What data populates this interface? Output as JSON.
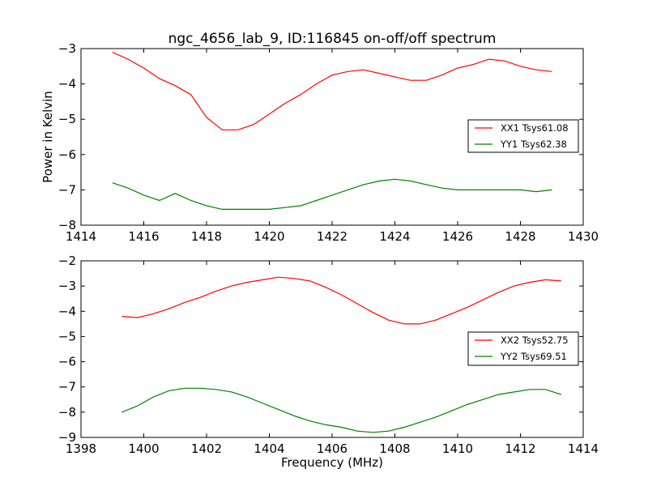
{
  "title": "ngc_4656_lab_9, ID:116845 on-off/off spectrum",
  "chart_data": [
    {
      "type": "line",
      "xlabel": "",
      "ylabel": "Power in Kelvin",
      "xlim": [
        1414,
        1430
      ],
      "ylim": [
        -8,
        -3
      ],
      "xticks": [
        1414,
        1416,
        1418,
        1420,
        1422,
        1424,
        1426,
        1428,
        1430
      ],
      "yticks": [
        -8,
        -7,
        -6,
        -5,
        -4,
        -3
      ],
      "grid": false,
      "legend_position": "center-right",
      "series": [
        {
          "name": "XX1 Tsys61.08",
          "color": "#ff0000",
          "x": [
            1415.0,
            1415.5,
            1416.0,
            1416.5,
            1417.0,
            1417.5,
            1418.0,
            1418.5,
            1419.0,
            1419.5,
            1420.0,
            1420.5,
            1421.0,
            1421.5,
            1422.0,
            1422.5,
            1423.0,
            1423.5,
            1424.0,
            1424.5,
            1425.0,
            1425.5,
            1426.0,
            1426.5,
            1427.0,
            1427.5,
            1428.0,
            1428.5,
            1429.0
          ],
          "y": [
            -3.1,
            -3.3,
            -3.55,
            -3.85,
            -4.05,
            -4.3,
            -4.95,
            -5.3,
            -5.3,
            -5.15,
            -4.85,
            -4.55,
            -4.3,
            -4.0,
            -3.75,
            -3.65,
            -3.6,
            -3.7,
            -3.8,
            -3.9,
            -3.9,
            -3.75,
            -3.55,
            -3.45,
            -3.3,
            -3.35,
            -3.5,
            -3.6,
            -3.65
          ]
        },
        {
          "name": "YY1 Tsys62.38",
          "color": "#008000",
          "x": [
            1415.0,
            1415.5,
            1416.0,
            1416.5,
            1417.0,
            1417.5,
            1418.0,
            1418.5,
            1419.0,
            1419.5,
            1420.0,
            1420.5,
            1421.0,
            1421.5,
            1422.0,
            1422.5,
            1423.0,
            1423.5,
            1424.0,
            1424.5,
            1425.0,
            1425.5,
            1426.0,
            1426.5,
            1427.0,
            1427.5,
            1428.0,
            1428.5,
            1429.0
          ],
          "y": [
            -6.8,
            -6.95,
            -7.15,
            -7.3,
            -7.1,
            -7.3,
            -7.45,
            -7.55,
            -7.55,
            -7.55,
            -7.55,
            -7.5,
            -7.45,
            -7.3,
            -7.15,
            -7.0,
            -6.85,
            -6.75,
            -6.7,
            -6.75,
            -6.85,
            -6.95,
            -7.0,
            -7.0,
            -7.0,
            -7.0,
            -7.0,
            -7.05,
            -7.0
          ]
        }
      ]
    },
    {
      "type": "line",
      "xlabel": "Frequency (MHz)",
      "ylabel": "",
      "xlim": [
        1398,
        1414
      ],
      "ylim": [
        -9,
        -2
      ],
      "xticks": [
        1398,
        1400,
        1402,
        1404,
        1406,
        1408,
        1410,
        1412,
        1414
      ],
      "yticks": [
        -9,
        -8,
        -7,
        -6,
        -5,
        -4,
        -3,
        -2
      ],
      "grid": false,
      "legend_position": "center-right",
      "series": [
        {
          "name": "XX2 Tsys52.75",
          "color": "#ff0000",
          "x": [
            1399.3,
            1399.8,
            1400.3,
            1400.8,
            1401.3,
            1401.8,
            1402.3,
            1402.8,
            1403.3,
            1403.8,
            1404.3,
            1404.8,
            1405.3,
            1405.8,
            1406.3,
            1406.8,
            1407.3,
            1407.8,
            1408.3,
            1408.8,
            1409.3,
            1409.8,
            1410.3,
            1410.8,
            1411.3,
            1411.8,
            1412.3,
            1412.8,
            1413.3
          ],
          "y": [
            -4.2,
            -4.25,
            -4.1,
            -3.9,
            -3.65,
            -3.45,
            -3.2,
            -3.0,
            -2.85,
            -2.75,
            -2.65,
            -2.7,
            -2.8,
            -3.05,
            -3.35,
            -3.7,
            -4.05,
            -4.35,
            -4.5,
            -4.5,
            -4.35,
            -4.1,
            -3.85,
            -3.55,
            -3.25,
            -3.0,
            -2.85,
            -2.75,
            -2.8
          ]
        },
        {
          "name": "YY2 Tsys69.51",
          "color": "#008000",
          "x": [
            1399.3,
            1399.8,
            1400.3,
            1400.8,
            1401.3,
            1401.8,
            1402.3,
            1402.8,
            1403.3,
            1403.8,
            1404.3,
            1404.8,
            1405.3,
            1405.8,
            1406.3,
            1406.8,
            1407.3,
            1407.8,
            1408.3,
            1408.8,
            1409.3,
            1409.8,
            1410.3,
            1410.8,
            1411.3,
            1411.8,
            1412.3,
            1412.8,
            1413.3
          ],
          "y": [
            -8.0,
            -7.75,
            -7.4,
            -7.15,
            -7.05,
            -7.05,
            -7.1,
            -7.2,
            -7.4,
            -7.65,
            -7.9,
            -8.15,
            -8.35,
            -8.5,
            -8.6,
            -8.75,
            -8.8,
            -8.75,
            -8.6,
            -8.4,
            -8.2,
            -7.95,
            -7.7,
            -7.5,
            -7.3,
            -7.2,
            -7.1,
            -7.1,
            -7.3
          ]
        }
      ]
    }
  ]
}
